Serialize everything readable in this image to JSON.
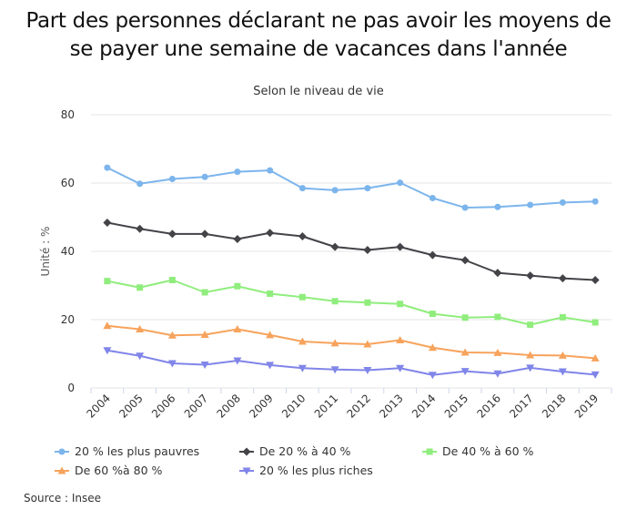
{
  "title_line1": "Part des personnes déclarant ne pas avoir les moyens de",
  "title_line2": "se payer une semaine de vacances dans l'année",
  "source": "Source : Insee",
  "chart_data": {
    "type": "line",
    "subtitle": "Selon le niveau de vie",
    "ylabel": "Unité : %",
    "xlabel": "",
    "ylim": [
      0,
      80
    ],
    "yticks": [
      0,
      20,
      40,
      60,
      80
    ],
    "grid": true,
    "legend_position": "bottom",
    "categories": [
      "2004",
      "2005",
      "2006",
      "2007",
      "2008",
      "2009",
      "2010",
      "2011",
      "2012",
      "2013",
      "2014",
      "2015",
      "2016",
      "2017",
      "2018",
      "2019"
    ],
    "series": [
      {
        "name": "20 % les plus pauvres",
        "color": "#7cb5ec",
        "marker": "circle",
        "values": [
          64.5,
          59.8,
          61.2,
          61.8,
          63.3,
          63.7,
          58.5,
          57.9,
          58.5,
          60.1,
          55.6,
          52.8,
          53.0,
          53.6,
          54.3,
          54.6
        ]
      },
      {
        "name": "De 20 % à 40 %",
        "color": "#434348",
        "marker": "diamond",
        "values": [
          48.4,
          46.6,
          45.1,
          45.1,
          43.6,
          45.4,
          44.4,
          41.3,
          40.4,
          41.3,
          38.9,
          37.4,
          33.7,
          32.9,
          32.1,
          31.6
        ]
      },
      {
        "name": "De 40 % à 60 %",
        "color": "#90ed7d",
        "marker": "square",
        "values": [
          31.3,
          29.4,
          31.6,
          28.0,
          29.8,
          27.6,
          26.6,
          25.4,
          25.0,
          24.6,
          21.7,
          20.6,
          20.8,
          18.5,
          20.7,
          19.2
        ]
      },
      {
        "name": "De 60 %à 80 %",
        "color": "#f7a35c",
        "marker": "triangle",
        "values": [
          18.2,
          17.2,
          15.4,
          15.6,
          17.2,
          15.5,
          13.6,
          13.1,
          12.8,
          14.0,
          11.8,
          10.4,
          10.3,
          9.6,
          9.5,
          8.7
        ]
      },
      {
        "name": "20 % les plus riches",
        "color": "#8085e9",
        "marker": "triangle-down",
        "values": [
          11.0,
          9.4,
          7.2,
          6.8,
          8.0,
          6.7,
          5.8,
          5.4,
          5.2,
          5.8,
          3.8,
          4.9,
          4.2,
          5.9,
          4.8,
          3.9
        ]
      }
    ]
  }
}
